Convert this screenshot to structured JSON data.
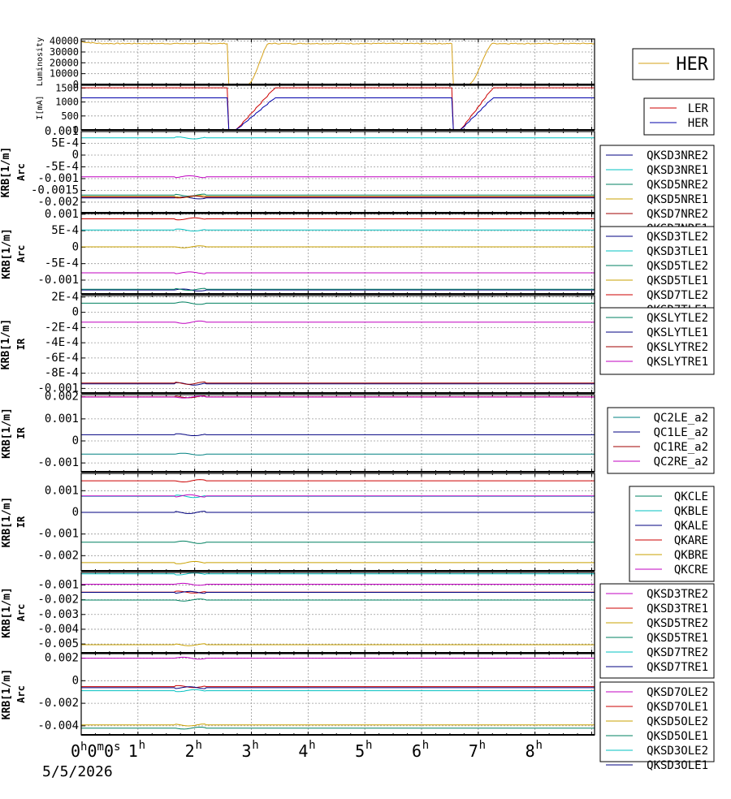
{
  "chart_data": [
    {
      "type": "line",
      "ylabel": "Luminosity",
      "yticks": [
        "40000",
        "30000",
        "20000",
        "10000",
        "0"
      ],
      "ylim": [
        0,
        42000
      ],
      "legend_placement": "top-right",
      "series": [
        {
          "name": "HER",
          "color": "#d4a017",
          "profile": "lum",
          "base": 37800
        }
      ]
    },
    {
      "type": "line",
      "ylabel": "I[mA]",
      "yticks": [
        "1500",
        "1000",
        "500",
        "0"
      ],
      "ylim": [
        0,
        1600
      ],
      "legend_placement": "top-right",
      "series": [
        {
          "name": "LER",
          "color": "#cc0000",
          "profile": "cur",
          "base": 1510
        },
        {
          "name": "HER",
          "color": "#0000aa",
          "profile": "cur",
          "base": 1150
        }
      ]
    },
    {
      "type": "line",
      "ylabel": [
        "KRB[1/m]",
        "Arc"
      ],
      "yticks": [
        "0.001",
        "5E-4",
        "0",
        "-5E-4",
        "-0.001",
        "-0.0015",
        "-0.002"
      ],
      "ylim": [
        -0.00245,
        0.001
      ],
      "legend_placement": "right",
      "series": [
        {
          "name": "QKSD3NRE2",
          "color": "#000080",
          "base": -0.00182
        },
        {
          "name": "QKSD3NRE1",
          "color": "#00c0c0",
          "base": 0.00073
        },
        {
          "name": "QKSD5NRE2",
          "color": "#008060",
          "base": -0.0017
        },
        {
          "name": "QKSD5NRE1",
          "color": "#c8a000",
          "base": -0.00176
        },
        {
          "name": "QKSD7NRE2",
          "color": "#a00000",
          "base": -0.00178
        },
        {
          "name": "QKSD7NRE1",
          "color": "#c000c0",
          "base": -0.00092
        }
      ]
    },
    {
      "type": "line",
      "ylabel": [
        "KRB[1/m]",
        "Arc"
      ],
      "yticks": [
        "0.001",
        "5E-4",
        "0",
        "-5E-4",
        "-0.001"
      ],
      "ylim": [
        -0.00142,
        0.00102
      ],
      "legend_placement": "right",
      "series": [
        {
          "name": "QKSD3TLE2",
          "color": "#000080",
          "base": -0.0013
        },
        {
          "name": "QKSD3TLE1",
          "color": "#00c0c0",
          "base": 0.00052
        },
        {
          "name": "QKSD5TLE2",
          "color": "#008060",
          "base": -0.00128
        },
        {
          "name": "QKSD5TLE1",
          "color": "#c8a000",
          "base": 1e-05
        },
        {
          "name": "QKSD7TLE2",
          "color": "#cc0000",
          "base": 0.00086
        },
        {
          "name": "QKSD7TLE1",
          "color": "#c000c0",
          "base": -0.00078
        }
      ]
    },
    {
      "type": "line",
      "ylabel": [
        "KRB[1/m]",
        "IR"
      ],
      "yticks": [
        "2E-4",
        "0",
        "-2E-4",
        "-4E-4",
        "-6E-4",
        "-8E-4",
        "-0.001"
      ],
      "ylim": [
        -0.00106,
        0.00022
      ],
      "legend_placement": "right",
      "series": [
        {
          "name": "QKSLYTLE2",
          "color": "#008060",
          "base": 0.00012
        },
        {
          "name": "QKSLYTLE1",
          "color": "#000080",
          "base": -0.00094
        },
        {
          "name": "QKSLYTRE2",
          "color": "#a00000",
          "base": -0.00093
        },
        {
          "name": "QKSLYTRE1",
          "color": "#c000c0",
          "base": -0.00013
        }
      ]
    },
    {
      "type": "line",
      "ylabel": [
        "KRB[1/m]",
        "IR"
      ],
      "yticks": [
        "0.002",
        "0.001",
        "0",
        "-0.001"
      ],
      "ylim": [
        -0.0014,
        0.0021
      ],
      "legend_placement": "right",
      "series": [
        {
          "name": "QC2LE_a2",
          "color": "#008080",
          "base": -0.0006
        },
        {
          "name": "QC1LE_a2",
          "color": "#000080",
          "base": 0.00028
        },
        {
          "name": "QC1RE_a2",
          "color": "#a00000",
          "base": 0.002
        },
        {
          "name": "QC2RE_a2",
          "color": "#c000c0",
          "base": 0.00199
        }
      ]
    },
    {
      "type": "line",
      "ylabel": [
        "KRB[1/m]",
        "IR"
      ],
      "yticks": [
        "0.001",
        "0",
        "-0.001",
        "-0.002"
      ],
      "ylim": [
        -0.0027,
        0.0018
      ],
      "legend_placement": "right",
      "series": [
        {
          "name": "QKCLE",
          "color": "#008060",
          "base": -0.00138
        },
        {
          "name": "QKBLE",
          "color": "#00c0c0",
          "base": 0.00074
        },
        {
          "name": "QKALE",
          "color": "#000080",
          "base": 0.0
        },
        {
          "name": "QKARE",
          "color": "#cc0000",
          "base": 0.00146
        },
        {
          "name": "QKBRE",
          "color": "#c8a000",
          "base": -0.00232
        },
        {
          "name": "QKCRE",
          "color": "#c000c0",
          "base": 0.00076
        }
      ]
    },
    {
      "type": "line",
      "ylabel": [
        "KRB[1/m]",
        "Arc"
      ],
      "yticks": [
        "-0.001",
        "-0.002",
        "-0.003",
        "-0.004",
        "-0.005"
      ],
      "ylim": [
        -0.0056,
        -0.00015
      ],
      "legend_placement": "right",
      "series": [
        {
          "name": "QKSD3TRE2",
          "color": "#c000c0",
          "base": -0.00095
        },
        {
          "name": "QKSD3TRE1",
          "color": "#cc0000",
          "base": -0.00148
        },
        {
          "name": "QKSD5TRE2",
          "color": "#c8a000",
          "base": -0.00505
        },
        {
          "name": "QKSD5TRE1",
          "color": "#008060",
          "base": -0.00202
        },
        {
          "name": "QKSD7TRE2",
          "color": "#00c0c0",
          "base": -0.00025
        },
        {
          "name": "QKSD7TRE1",
          "color": "#000080",
          "base": -0.0015
        }
      ]
    },
    {
      "type": "line",
      "ylabel": [
        "KRB[1/m]",
        "Arc"
      ],
      "yticks": [
        "0.002",
        "0",
        "-0.002",
        "-0.004"
      ],
      "ylim": [
        -0.0048,
        0.0024
      ],
      "legend_placement": "right",
      "series": [
        {
          "name": "QKSD7OLE2",
          "color": "#c000c0",
          "base": 0.002
        },
        {
          "name": "QKSD7OLE1",
          "color": "#cc0000",
          "base": -0.00052
        },
        {
          "name": "QKSD5OLE2",
          "color": "#c8a000",
          "base": -0.00392
        },
        {
          "name": "QKSD5OLE1",
          "color": "#008060",
          "base": -0.0042
        },
        {
          "name": "QKSD3OLE2",
          "color": "#00c0c0",
          "base": -0.00088
        },
        {
          "name": "QKSD3OLE1",
          "color": "#000080",
          "base": -0.00062
        }
      ]
    }
  ],
  "x_axis": {
    "range_hours": [
      0,
      9.05
    ],
    "first_label": "0",
    "first_label_parts": [
      "h",
      "0",
      "m",
      "0",
      "s"
    ],
    "tick_labels": [
      {
        "value": 1,
        "text": "1",
        "unit": "h"
      },
      {
        "value": 2,
        "text": "2",
        "unit": "h"
      },
      {
        "value": 3,
        "text": "3",
        "unit": "h"
      },
      {
        "value": 4,
        "text": "4",
        "unit": "h"
      },
      {
        "value": 5,
        "text": "5",
        "unit": "h"
      },
      {
        "value": 6,
        "text": "6",
        "unit": "h"
      },
      {
        "value": 7,
        "text": "7",
        "unit": "h"
      },
      {
        "value": 8,
        "text": "8",
        "unit": "h"
      }
    ],
    "date": "5/5/2026"
  }
}
